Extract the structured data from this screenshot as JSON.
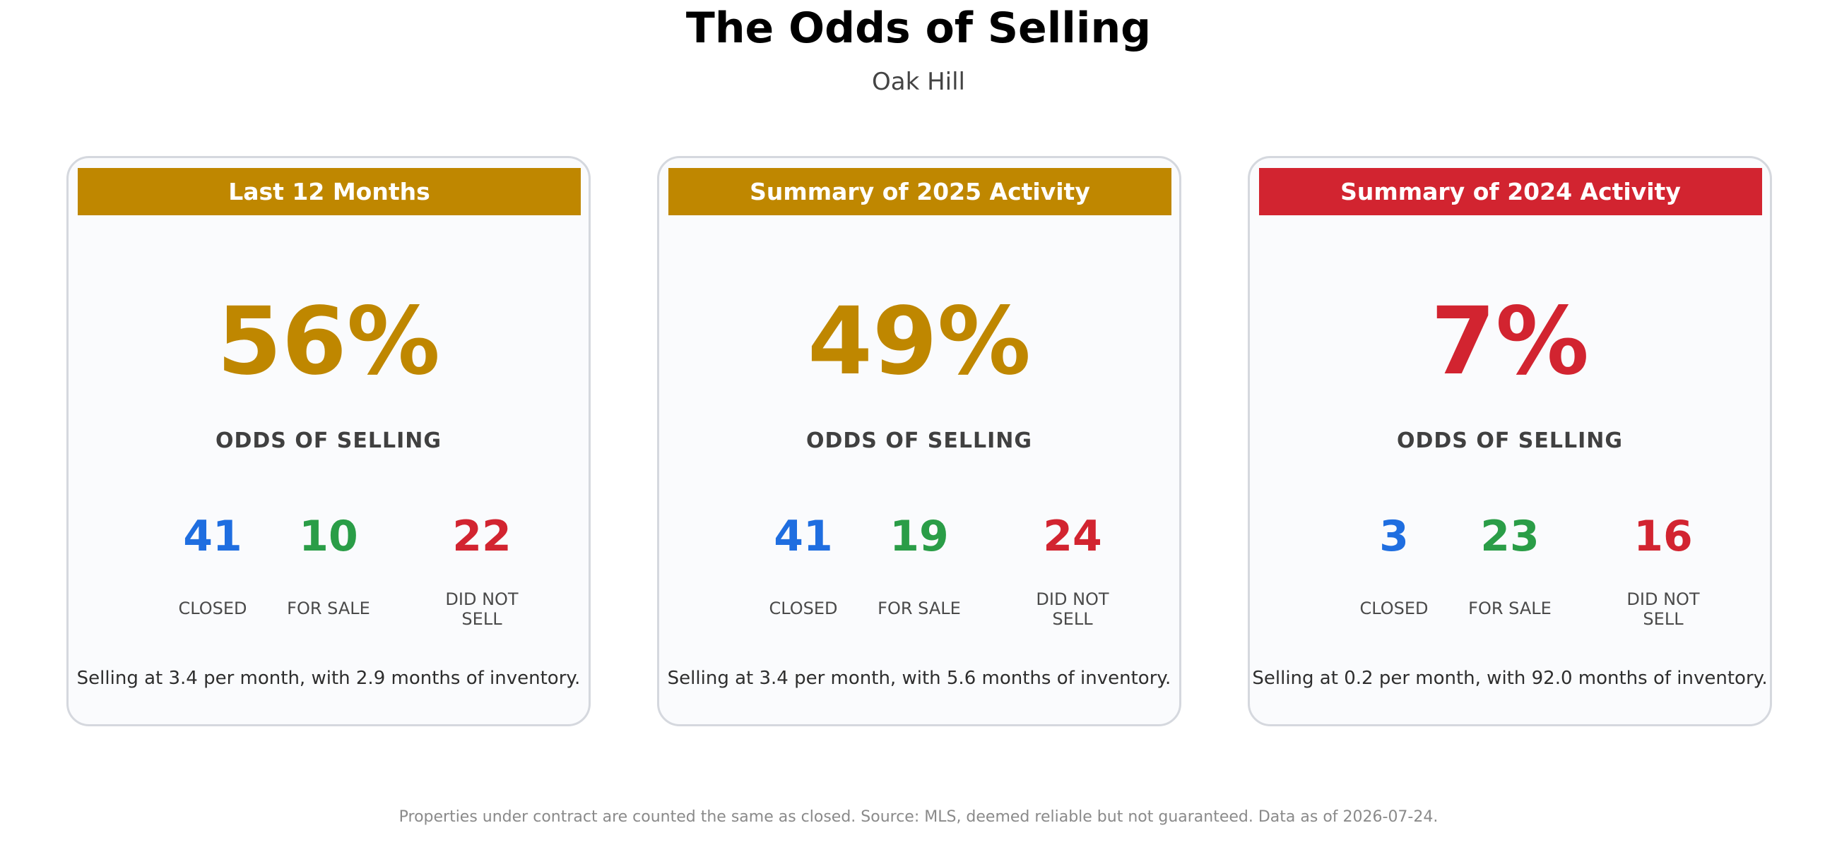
{
  "header": {
    "title": "The Odds of Selling",
    "subtitle": "Oak Hill"
  },
  "colors": {
    "gold": "#bf8700",
    "red": "#d22430",
    "blue": "#1f6ee0",
    "green": "#2a9d47"
  },
  "cards": [
    {
      "banner": "Last 12 Months",
      "banner_color": "#bf8700",
      "percent": "56%",
      "percent_color": "#bf8700",
      "odds_label": "ODDS OF SELLING",
      "closed": "41",
      "for_sale": "10",
      "did_not_sell": "22",
      "closed_label": "CLOSED",
      "for_sale_label": "FOR SALE",
      "did_not_sell_label": "DID NOT\nSELL",
      "summary": "Selling at 3.4 per month, with 2.9 months of inventory."
    },
    {
      "banner": "Summary of 2025 Activity",
      "banner_color": "#bf8700",
      "percent": "49%",
      "percent_color": "#bf8700",
      "odds_label": "ODDS OF SELLING",
      "closed": "41",
      "for_sale": "19",
      "did_not_sell": "24",
      "closed_label": "CLOSED",
      "for_sale_label": "FOR SALE",
      "did_not_sell_label": "DID NOT\nSELL",
      "summary": "Selling at 3.4 per month, with 5.6 months of inventory."
    },
    {
      "banner": "Summary of 2024 Activity",
      "banner_color": "#d22430",
      "percent": "7%",
      "percent_color": "#d22430",
      "odds_label": "ODDS OF SELLING",
      "closed": "3",
      "for_sale": "23",
      "did_not_sell": "16",
      "closed_label": "CLOSED",
      "for_sale_label": "FOR SALE",
      "did_not_sell_label": "DID NOT\nSELL",
      "summary": "Selling at 0.2 per month, with 92.0 months of inventory."
    }
  ],
  "footer": {
    "note": "Properties under contract are counted the same as closed. Source: MLS, deemed reliable but not guaranteed. Data as of 2026-07-24."
  }
}
